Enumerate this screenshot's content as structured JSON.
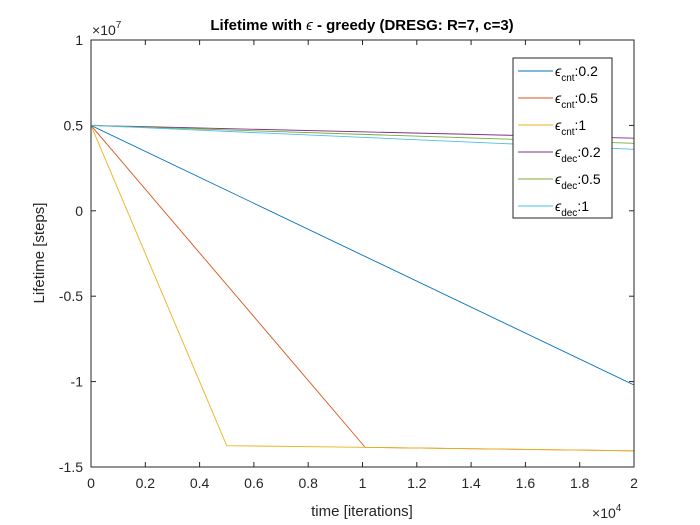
{
  "chart_data": {
    "type": "line",
    "title": {
      "prefix": "Lifetime with ",
      "symbol": "ϵ",
      "suffix": " - greedy (DRESG: R=7, c=3)"
    },
    "xlabel": "time [iterations]",
    "ylabel": "Lifetime [steps]",
    "x_exponent": "10",
    "x_exponent_power": "4",
    "y_exponent": "10",
    "y_exponent_power": "7",
    "x_scale": 10000,
    "y_scale": 10000000,
    "xlim": [
      0,
      20000
    ],
    "ylim": [
      -15000000,
      10000000
    ],
    "x_ticks": [
      {
        "value": 0,
        "label": "0"
      },
      {
        "value": 2000,
        "label": "0.2"
      },
      {
        "value": 4000,
        "label": "0.4"
      },
      {
        "value": 6000,
        "label": "0.6"
      },
      {
        "value": 8000,
        "label": "0.8"
      },
      {
        "value": 10000,
        "label": "1"
      },
      {
        "value": 12000,
        "label": "1.2"
      },
      {
        "value": 14000,
        "label": "1.4"
      },
      {
        "value": 16000,
        "label": "1.6"
      },
      {
        "value": 18000,
        "label": "1.8"
      },
      {
        "value": 20000,
        "label": "2"
      }
    ],
    "y_ticks": [
      {
        "value": -15000000,
        "label": "-1.5"
      },
      {
        "value": -10000000,
        "label": "-1"
      },
      {
        "value": -5000000,
        "label": "-0.5"
      },
      {
        "value": 0,
        "label": "0"
      },
      {
        "value": 5000000,
        "label": "0.5"
      },
      {
        "value": 10000000,
        "label": "1"
      }
    ],
    "legend_position": "top-right",
    "grid": false,
    "series": [
      {
        "name": "ϵ_cnt:0.2",
        "symbol": "ϵ",
        "sub": "cnt",
        "suffix": ":0.2",
        "color": "#0072BD",
        "x": [
          0,
          20000
        ],
        "y": [
          5000000,
          -10200000
        ]
      },
      {
        "name": "ϵ_cnt:0.5",
        "symbol": "ϵ",
        "sub": "cnt",
        "suffix": ":0.5",
        "color": "#D95319",
        "x": [
          0,
          10100,
          20000
        ],
        "y": [
          5000000,
          -13850000,
          -14050000
        ]
      },
      {
        "name": "ϵ_cnt:1",
        "symbol": "ϵ",
        "sub": "cnt",
        "suffix": ":1",
        "color": "#EDB120",
        "x": [
          0,
          5000,
          20000
        ],
        "y": [
          5000000,
          -13750000,
          -14050000
        ]
      },
      {
        "name": "ϵ_dec:0.2",
        "symbol": "ϵ",
        "sub": "dec",
        "suffix": ":0.2",
        "color": "#7E2F8E",
        "x": [
          0,
          20000
        ],
        "y": [
          5000000,
          4250000
        ]
      },
      {
        "name": "ϵ_dec:0.5",
        "symbol": "ϵ",
        "sub": "dec",
        "suffix": ":0.5",
        "color": "#77AC30",
        "x": [
          0,
          20000
        ],
        "y": [
          5000000,
          3950000
        ]
      },
      {
        "name": "ϵ_dec:1",
        "symbol": "ϵ",
        "sub": "dec",
        "suffix": ":1",
        "color": "#4DBEEE",
        "x": [
          0,
          20000
        ],
        "y": [
          5000000,
          3600000
        ]
      }
    ]
  }
}
